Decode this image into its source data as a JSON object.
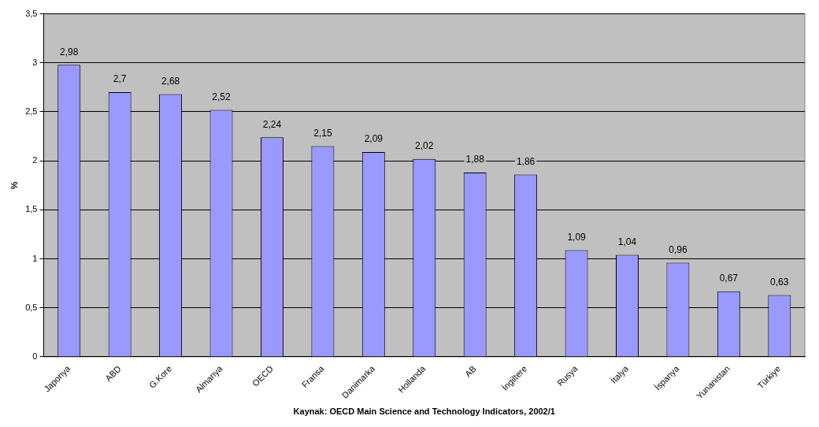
{
  "chart_data": {
    "type": "bar",
    "xlabel": "Kaynak: OECD Main Science and Technology Indicators, 2002/1",
    "ylabel": "%",
    "categories": [
      "Japonya",
      "ABD",
      "G.Kore",
      "Almanya",
      "OECD",
      "Fransa",
      "Danimarka",
      "Hollanda",
      "AB",
      "İngiltere",
      "Rusya",
      "İtalya",
      "İspanya",
      "Yunanistan",
      "Türkiye"
    ],
    "values": [
      2.98,
      2.7,
      2.68,
      2.52,
      2.24,
      2.15,
      2.09,
      2.02,
      1.88,
      1.86,
      1.09,
      1.04,
      0.96,
      0.67,
      0.63
    ],
    "value_labels": [
      "2,98",
      "2,7",
      "2,68",
      "2,52",
      "2,24",
      "2,15",
      "2,09",
      "2,02",
      "1,88",
      "1,86",
      "1,09",
      "1,04",
      "0,96",
      "0,67",
      "0,63"
    ],
    "color": "#9999ff",
    "ylim": [
      0,
      3.5
    ],
    "yticks": [
      {
        "value": 0,
        "label": "0"
      },
      {
        "value": 0.5,
        "label": "0,5"
      },
      {
        "value": 1,
        "label": "1"
      },
      {
        "value": 1.5,
        "label": "1,5"
      },
      {
        "value": 2,
        "label": "2"
      },
      {
        "value": 2.5,
        "label": "2,5"
      },
      {
        "value": 3,
        "label": "3"
      },
      {
        "value": 3.5,
        "label": "3,5"
      }
    ],
    "grid": "y",
    "legend": false
  }
}
